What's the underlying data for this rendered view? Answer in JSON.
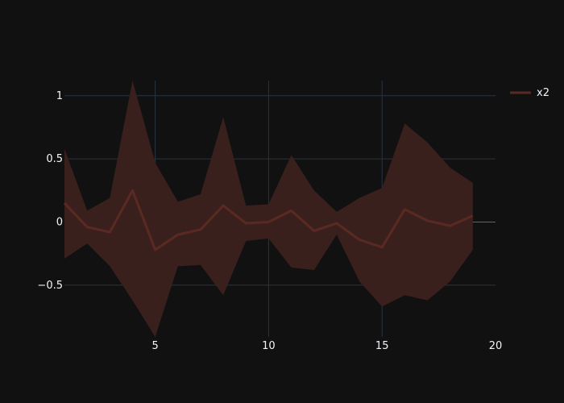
{
  "chart_data": {
    "type": "area",
    "x": [
      1,
      2,
      3,
      4,
      5,
      6,
      7,
      8,
      9,
      10,
      11,
      12,
      13,
      14,
      15,
      16,
      17,
      18,
      19
    ],
    "xlim": [
      1,
      20
    ],
    "ylim": [
      -0.91,
      1.12
    ],
    "xticks": [
      5,
      10,
      15,
      20
    ],
    "yticks": [
      -0.5,
      0,
      0.5,
      1
    ],
    "xtick_labels": [
      "5",
      "10",
      "15",
      "20"
    ],
    "ytick_labels": [
      "−0.5",
      "0",
      "0.5",
      "1"
    ],
    "grid": true,
    "legend_position": "top-right",
    "series": [
      {
        "name": "x2",
        "color": "#5a2a22",
        "fill_color": "#3a201d",
        "values": [
          0.15,
          -0.04,
          -0.08,
          0.25,
          -0.22,
          -0.1,
          -0.06,
          0.13,
          -0.01,
          0.0,
          0.09,
          -0.07,
          -0.01,
          -0.14,
          -0.2,
          0.1,
          0.01,
          -0.03,
          0.05
        ],
        "upper": [
          0.58,
          0.09,
          0.19,
          1.12,
          0.47,
          0.16,
          0.22,
          0.83,
          0.13,
          0.14,
          0.53,
          0.25,
          0.08,
          0.19,
          0.27,
          0.78,
          0.63,
          0.43,
          0.31
        ],
        "lower": [
          -0.29,
          -0.17,
          -0.35,
          -0.62,
          -0.91,
          -0.35,
          -0.34,
          -0.58,
          -0.15,
          -0.13,
          -0.36,
          -0.38,
          -0.1,
          -0.47,
          -0.67,
          -0.58,
          -0.62,
          -0.47,
          -0.22
        ]
      }
    ]
  }
}
